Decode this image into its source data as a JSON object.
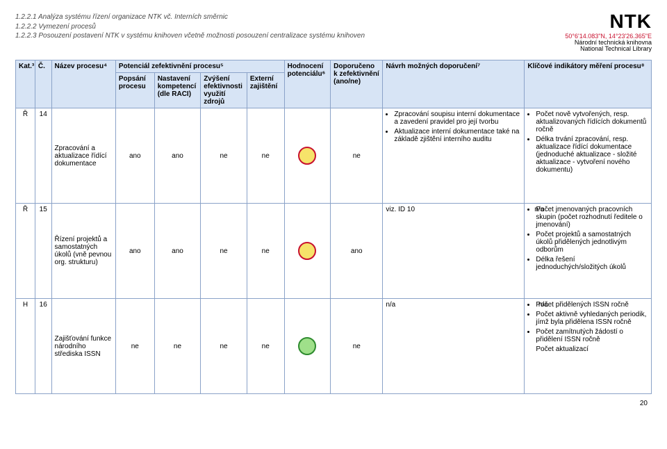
{
  "toc": {
    "line1": "1.2.2.1  Analýza systému řízení organizace NTK vč. Interních směrnic",
    "line2": "1.2.2.2  Vymezení procesů",
    "line3": "1.2.2.3  Posouzení postavení NTK v systému knihoven včetně možnosti posouzení centralizace systému knihoven"
  },
  "logo": {
    "name": "NTK",
    "coords": "50°6'14.083\"N, 14°23'26.365\"E",
    "sub1": "Národní technická knihovna",
    "sub2": "National Technical Library"
  },
  "headers": {
    "kat": "Kat.³",
    "c": "Č.",
    "nazev": "Název procesu⁴",
    "potencial_group": "Potenciál zefektivnění procesu⁵",
    "popsani": "Popsání procesu",
    "nastaveni": "Nastavení kompetencí (dle RACI)",
    "zvyseni": "Zvýšení efektivnosti využití zdrojů",
    "externi": "Externí zajištění",
    "hodnoceni": "Hodnocení potenciálu⁶",
    "doporuceno": "Doporučeno k zefektivnění (ano/ne)",
    "navrh": "Návrh možných doporučení⁷",
    "indikatory": "Klíčové indikátory měření procesu⁸"
  },
  "rows": [
    {
      "kat": "Ř",
      "c": "14",
      "nazev": "Zpracování a aktualizace řídící dokumentace",
      "popsani": "ano",
      "nastaveni": "ano",
      "zvyseni": "ne",
      "externi": "ne",
      "doporuceno": "ne",
      "circle": {
        "fill": "#f6e36a",
        "stroke": "#c8102e"
      },
      "navrh_items": [
        "Zpracování soupisu interní dokumentace a zavedení pravidel pro její tvorbu",
        "Aktualizace interní dokumentace také na základě zjištění interního auditu"
      ],
      "navrh_extra": "",
      "indikatory_items": [
        "Počet nově vytvořených, resp. aktualizovaných řídících dokumentů ročně",
        "Délka trvání zpracování, resp. aktualizace řídící dokumentace (jednoduché aktualizace - složité aktualizace - vytvoření nového dokumentu)"
      ],
      "indikatory_extra": ""
    },
    {
      "kat": "Ř",
      "c": "15",
      "nazev": "Řízení projektů a samostatných úkolů (vně pevnou org. strukturu)",
      "popsani": "ano",
      "nastaveni": "ano",
      "zvyseni": "ne",
      "externi": "ne",
      "doporuceno": "ano",
      "circle": {
        "fill": "#f6e36a",
        "stroke": "#c8102e"
      },
      "navrh_items": [],
      "navrh_extra": "viz. ID 10                                                              n/a",
      "indikatory_items": [
        "Počet jmenovaných pracovních skupin (počet rozhodnutí ředitele o jmenování)",
        "Počet projektů a samostatných úkolů přidělených jednotlivým odborům",
        "Délka řešení jednoduchých/složitých úkolů"
      ],
      "indikatory_extra": ""
    },
    {
      "kat": "H",
      "c": "16",
      "nazev": "Zajišťování funkce národního střediska ISSN",
      "popsani": "ne",
      "nastaveni": "ne",
      "zvyseni": "ne",
      "externi": "ne",
      "doporuceno": "ne",
      "circle": {
        "fill": "#9fe08a",
        "stroke": "#2e8b2e"
      },
      "navrh_items": [],
      "navrh_extra": "n/a                                                                          n/a",
      "indikatory_items": [
        "Počet přidělených ISSN ročně",
        "Počet aktivně vyhledaných periodik, jímž byla přidělena ISSN ročně",
        "Počet zamítnutých žádostí o přidělení ISSN ročně"
      ],
      "indikatory_extra": "Počet aktualizací"
    }
  ],
  "page_number": "20",
  "colors": {
    "header_bg": "#d7e4f5",
    "border": "#8aa2c8",
    "accent_red": "#c8102e"
  }
}
